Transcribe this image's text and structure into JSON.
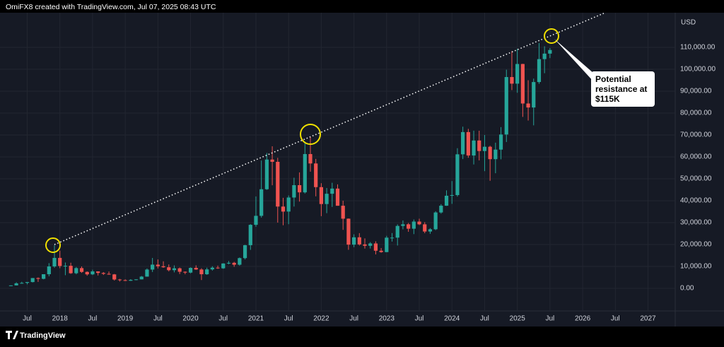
{
  "header": {
    "text": "OmiFX8 created with TradingView.com, Jul 07, 2025 08:43 UTC"
  },
  "chart_data": {
    "type": "candlestick",
    "currency": "USD",
    "x": [
      "2017-04",
      "2017-05",
      "2017-06",
      "2017-07",
      "2017-08",
      "2017-09",
      "2017-10",
      "2017-11",
      "2017-12",
      "2018-01",
      "2018-02",
      "2018-03",
      "2018-04",
      "2018-05",
      "2018-06",
      "2018-07",
      "2018-08",
      "2018-09",
      "2018-10",
      "2018-11",
      "2018-12",
      "2019-01",
      "2019-02",
      "2019-03",
      "2019-04",
      "2019-05",
      "2019-06",
      "2019-07",
      "2019-08",
      "2019-09",
      "2019-10",
      "2019-11",
      "2019-12",
      "2020-01",
      "2020-02",
      "2020-03",
      "2020-04",
      "2020-05",
      "2020-06",
      "2020-07",
      "2020-08",
      "2020-09",
      "2020-10",
      "2020-11",
      "2020-12",
      "2021-01",
      "2021-02",
      "2021-03",
      "2021-04",
      "2021-05",
      "2021-06",
      "2021-07",
      "2021-08",
      "2021-09",
      "2021-10",
      "2021-11",
      "2021-12",
      "2022-01",
      "2022-02",
      "2022-03",
      "2022-04",
      "2022-05",
      "2022-06",
      "2022-07",
      "2022-08",
      "2022-09",
      "2022-10",
      "2022-11",
      "2022-12",
      "2023-01",
      "2023-02",
      "2023-03",
      "2023-04",
      "2023-05",
      "2023-06",
      "2023-07",
      "2023-08",
      "2023-09",
      "2023-10",
      "2023-11",
      "2023-12",
      "2024-01",
      "2024-02",
      "2024-03",
      "2024-04",
      "2024-05",
      "2024-06",
      "2024-07",
      "2024-08",
      "2024-09",
      "2024-10",
      "2024-11",
      "2024-12",
      "2025-01",
      "2025-02",
      "2025-03",
      "2025-04",
      "2025-05",
      "2025-06",
      "2025-07"
    ],
    "open": [
      1080,
      1350,
      2300,
      2480,
      2875,
      4700,
      4340,
      6450,
      10000,
      13900,
      10200,
      10300,
      6900,
      9240,
      7500,
      6390,
      7730,
      7030,
      6630,
      6370,
      4040,
      3740,
      3460,
      3850,
      4100,
      5350,
      8570,
      10820,
      10090,
      9630,
      8300,
      9150,
      7570,
      7190,
      9350,
      8600,
      6440,
      8650,
      9450,
      9140,
      11350,
      11660,
      10780,
      13800,
      19700,
      29000,
      33100,
      45240,
      58800,
      57750,
      37330,
      35040,
      41460,
      47100,
      43820,
      61300,
      57000,
      46200,
      38480,
      43180,
      45540,
      37710,
      31800,
      19950,
      23300,
      20050,
      19430,
      20490,
      17170,
      16550,
      23140,
      23150,
      28480,
      29250,
      27220,
      30480,
      29230,
      25940,
      26970,
      34640,
      37720,
      42280,
      42580,
      61180,
      71330,
      60640,
      67490,
      62680,
      64630,
      58970,
      63330,
      70220,
      96450,
      93430,
      102410,
      84370,
      82550,
      94170,
      104640,
      107140
    ],
    "high": [
      1350,
      2760,
      3000,
      2900,
      4700,
      4980,
      6450,
      11500,
      19700,
      17200,
      11800,
      11700,
      9750,
      9990,
      7760,
      8500,
      7760,
      7410,
      7680,
      6560,
      4310,
      4110,
      4200,
      4140,
      5640,
      9070,
      13880,
      13200,
      12340,
      10910,
      10490,
      9510,
      7740,
      9580,
      10500,
      9190,
      9460,
      10080,
      10380,
      11450,
      12480,
      12090,
      14100,
      19860,
      29300,
      41950,
      58350,
      61800,
      64850,
      59590,
      41330,
      42400,
      50500,
      52920,
      67000,
      69000,
      59100,
      47990,
      45800,
      48190,
      47450,
      40020,
      31900,
      24670,
      25200,
      22800,
      21100,
      21480,
      18400,
      23960,
      25250,
      29190,
      31000,
      29840,
      31430,
      31800,
      30230,
      27480,
      35200,
      38430,
      44730,
      48970,
      63970,
      73800,
      72800,
      71980,
      71950,
      70000,
      65100,
      66500,
      73600,
      99800,
      108270,
      109360,
      102500,
      95000,
      95750,
      111980,
      110500,
      109700
    ],
    "low": [
      1060,
      1350,
      2100,
      1840,
      2700,
      2950,
      4120,
      5500,
      9400,
      9200,
      6000,
      6600,
      6430,
      7060,
      5780,
      6070,
      5880,
      6110,
      6200,
      3560,
      3130,
      3350,
      3400,
      3730,
      4080,
      5330,
      7450,
      9100,
      9380,
      7750,
      7300,
      6520,
      6430,
      6870,
      8450,
      3800,
      6150,
      8110,
      8900,
      8900,
      10980,
      9830,
      10370,
      13210,
      17570,
      28130,
      32300,
      44950,
      47050,
      30000,
      28800,
      29280,
      37330,
      39600,
      43290,
      53250,
      42000,
      32950,
      34320,
      37160,
      37700,
      26700,
      17600,
      18780,
      19540,
      18150,
      18190,
      15480,
      16260,
      16500,
      21350,
      19550,
      26940,
      25810,
      24750,
      28860,
      25170,
      24900,
      26560,
      34100,
      37630,
      38560,
      41880,
      59000,
      59600,
      56550,
      58400,
      53500,
      49100,
      52550,
      58900,
      66800,
      90500,
      89260,
      78260,
      76600,
      74400,
      93370,
      98200,
      105100
    ],
    "close": [
      1350,
      2300,
      2480,
      2875,
      4700,
      4340,
      6450,
      10000,
      13900,
      10200,
      10300,
      6900,
      9240,
      7500,
      6390,
      7730,
      7030,
      6630,
      6370,
      4040,
      3740,
      3460,
      3850,
      4100,
      5350,
      8570,
      10820,
      10090,
      9630,
      8300,
      9150,
      7570,
      7190,
      9350,
      8600,
      6440,
      8650,
      9450,
      9140,
      11350,
      11660,
      10780,
      13800,
      19700,
      29000,
      33100,
      45240,
      58800,
      57750,
      37330,
      35040,
      41460,
      47100,
      43820,
      61300,
      57000,
      46200,
      38480,
      43180,
      45540,
      37710,
      31800,
      19950,
      23300,
      20050,
      19430,
      20490,
      17170,
      16550,
      23140,
      23150,
      28480,
      29250,
      27220,
      30480,
      29230,
      25940,
      26970,
      34640,
      37720,
      42280,
      42580,
      61180,
      71330,
      60640,
      67490,
      62680,
      64630,
      58970,
      63330,
      70220,
      96450,
      93430,
      102410,
      84370,
      82550,
      94170,
      104640,
      107140,
      108800
    ],
    "up_color": "#26a69a",
    "down_color": "#ef5350",
    "xlim": [
      "2017-02",
      "2027-06"
    ],
    "xticks": [
      {
        "value": "2017-07",
        "label": "Jul"
      },
      {
        "value": "2018-01",
        "label": "2018"
      },
      {
        "value": "2018-07",
        "label": "Jul"
      },
      {
        "value": "2019-01",
        "label": "2019"
      },
      {
        "value": "2019-07",
        "label": "Jul"
      },
      {
        "value": "2020-01",
        "label": "2020"
      },
      {
        "value": "2020-07",
        "label": "Jul"
      },
      {
        "value": "2021-01",
        "label": "2021"
      },
      {
        "value": "2021-07",
        "label": "Jul"
      },
      {
        "value": "2022-01",
        "label": "2022"
      },
      {
        "value": "2022-07",
        "label": "Jul"
      },
      {
        "value": "2023-01",
        "label": "2023"
      },
      {
        "value": "2023-07",
        "label": "Jul"
      },
      {
        "value": "2024-01",
        "label": "2024"
      },
      {
        "value": "2024-07",
        "label": "Jul"
      },
      {
        "value": "2025-01",
        "label": "2025"
      },
      {
        "value": "2025-07",
        "label": "Jul"
      },
      {
        "value": "2026-01",
        "label": "2026"
      },
      {
        "value": "2026-07",
        "label": "Jul"
      },
      {
        "value": "2027-01",
        "label": "2027"
      }
    ],
    "ylim": [
      -10320,
      125810
    ],
    "yticks": [
      {
        "value": 0,
        "label": "0.00"
      },
      {
        "value": 10000,
        "label": "10,000.00"
      },
      {
        "value": 20000,
        "label": "20,000.00"
      },
      {
        "value": 30000,
        "label": "30,000.00"
      },
      {
        "value": 40000,
        "label": "40,000.00"
      },
      {
        "value": 50000,
        "label": "50,000.00"
      },
      {
        "value": 60000,
        "label": "60,000.00"
      },
      {
        "value": 70000,
        "label": "70,000.00"
      },
      {
        "value": 80000,
        "label": "80,000.00"
      },
      {
        "value": 90000,
        "label": "90,000.00"
      },
      {
        "value": 100000,
        "label": "100,000.00"
      },
      {
        "value": 110000,
        "label": "110,000.00"
      }
    ],
    "grid": true,
    "annotation": "Potential resistance at $115K"
  },
  "footer": {
    "brand": "TradingView"
  }
}
